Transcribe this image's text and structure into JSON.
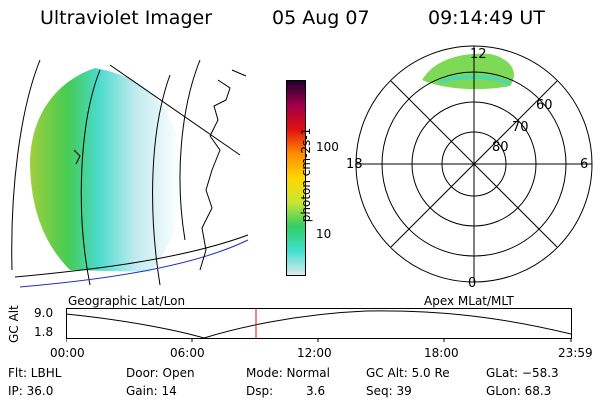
{
  "header": {
    "title": "Ultraviolet Imager",
    "date": "05 Aug 07",
    "time": "09:14:49 UT"
  },
  "colorbar": {
    "label": "photon cm-2s-1",
    "ticks": [
      "100",
      "10"
    ],
    "colors": [
      "#dfe9ec",
      "#40e0d0",
      "#32cd64",
      "#c8e632",
      "#ffd700",
      "#ff8c00",
      "#e01010",
      "#a0004a",
      "#200030"
    ]
  },
  "polar": {
    "mlt_labels": {
      "top": "12",
      "left": "18",
      "right": "6",
      "bottom": "0"
    },
    "lat_labels": [
      "60",
      "70",
      "80"
    ]
  },
  "footer_labels": {
    "left": "Geographic Lat/Lon",
    "right": "Apex MLat/MLT"
  },
  "timeline": {
    "axis_label": "GC Alt",
    "y_ticks": [
      "9.0",
      "1.8"
    ],
    "x_ticks": [
      "00:00",
      "06:00",
      "12:00",
      "18:00",
      "23:59"
    ],
    "current_marker_color": "#e01010"
  },
  "info": {
    "flt": "Flt: LBHL",
    "door": "Door: Open",
    "mode": "Mode: Normal",
    "gcalt": "GC Alt: 5.0 Re",
    "glat": "GLat: −58.3",
    "ip": "IP: 36.0",
    "gain": "Gain: 14",
    "dsp_label": "Dsp:",
    "dsp_value": "3.6",
    "seq": "Seq: 39",
    "glon": "GLon: 68.3"
  }
}
